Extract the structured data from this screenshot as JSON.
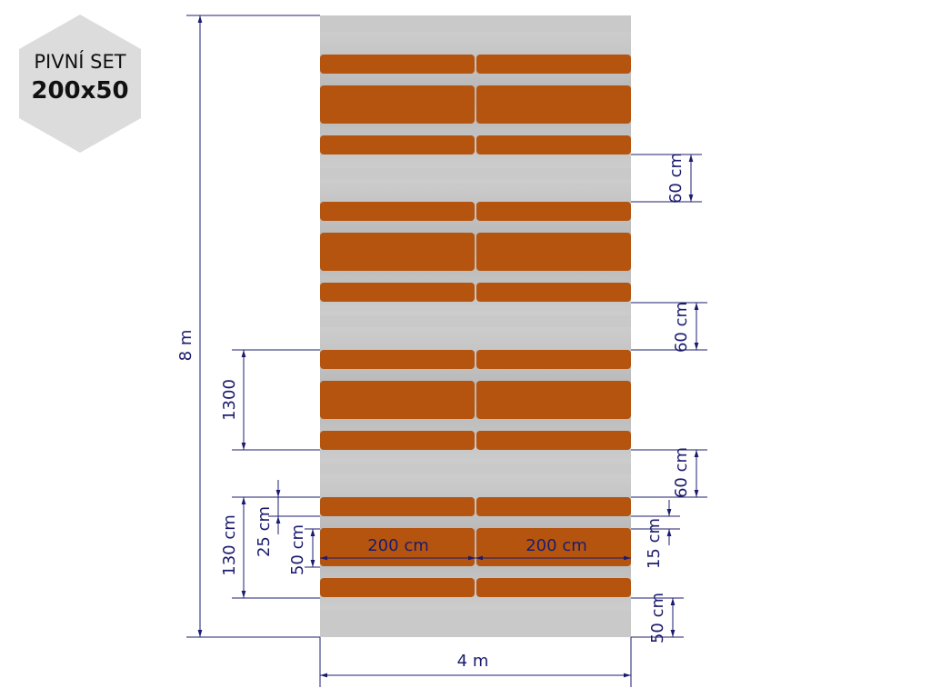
{
  "badge": {
    "line1": "PIVNÍ SET",
    "line2": "200x50"
  },
  "dimensions": {
    "total_height": "8 m",
    "total_width": "4 m",
    "zone_height": "1300",
    "set_depth": "130 cm",
    "bench_gap": "25 cm",
    "table_width": "50 cm",
    "table_length_left": "200 cm",
    "table_length_right": "200 cm",
    "aisle_1": "60 cm",
    "aisle_2": "60 cm",
    "aisle_3": "60 cm",
    "bench_width": "15 cm",
    "end_margin": "50 cm"
  }
}
